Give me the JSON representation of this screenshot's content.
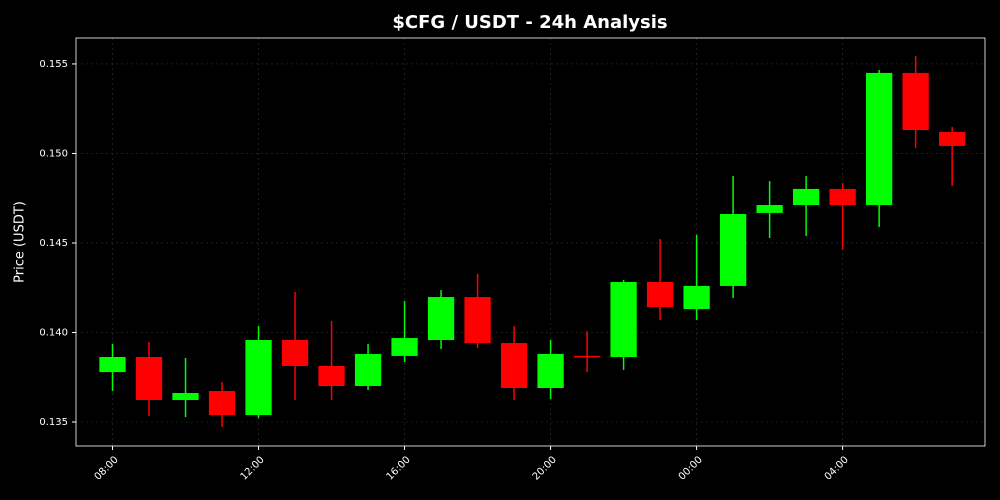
{
  "chart_data": {
    "type": "candlestick",
    "title": "$CFG / USDT - 24h Analysis",
    "y_label": "Price (USDT)",
    "categories": [
      "08:00",
      null,
      null,
      null,
      "12:00",
      null,
      null,
      null,
      "16:00",
      null,
      null,
      null,
      "20:00",
      null,
      null,
      null,
      "00:00",
      null,
      null,
      null,
      "04:00",
      null,
      null,
      null
    ],
    "open": [
      0.13779,
      0.13863,
      0.13623,
      0.13673,
      0.13539,
      0.13958,
      0.13813,
      0.13701,
      0.13869,
      0.13958,
      0.14198,
      0.13941,
      0.1369,
      0.13869,
      0.13863,
      0.14282,
      0.14131,
      0.1426,
      0.14668,
      0.14712,
      0.14802,
      0.14712,
      0.1545,
      0.1512
    ],
    "high": [
      0.13936,
      0.13947,
      0.13858,
      0.13723,
      0.14036,
      0.14226,
      0.14064,
      0.13936,
      0.14176,
      0.14237,
      0.14327,
      0.14036,
      0.13958,
      0.14008,
      0.14293,
      0.14522,
      0.14545,
      0.14874,
      0.14846,
      0.14874,
      0.14835,
      0.15466,
      0.15545,
      0.15148
    ],
    "low": [
      0.13673,
      0.13534,
      0.13528,
      0.13472,
      0.13522,
      0.13623,
      0.13623,
      0.13679,
      0.13835,
      0.13908,
      0.13913,
      0.13623,
      0.13629,
      0.13779,
      0.13791,
      0.1407,
      0.1407,
      0.14193,
      0.14528,
      0.14539,
      0.14461,
      0.14589,
      0.15031,
      0.14818
    ],
    "close": [
      0.13863,
      0.13623,
      0.13662,
      0.13539,
      0.13958,
      0.13813,
      0.13701,
      0.1388,
      0.13969,
      0.14198,
      0.13941,
      0.1369,
      0.1388,
      0.13866,
      0.14282,
      0.14142,
      0.1426,
      0.14662,
      0.14712,
      0.14802,
      0.14712,
      0.1545,
      0.15131,
      0.15042
    ],
    "up_color": "#00ff00",
    "down_color": "#ff0000",
    "ylim": [
      0.13366,
      0.15645
    ],
    "yticks": [
      0.135,
      {
        "value": 0.14,
        "label": "0.140"
      },
      0.145,
      {
        "value": 0.15,
        "label": "0.150"
      },
      0.155
    ],
    "grid": true
  }
}
